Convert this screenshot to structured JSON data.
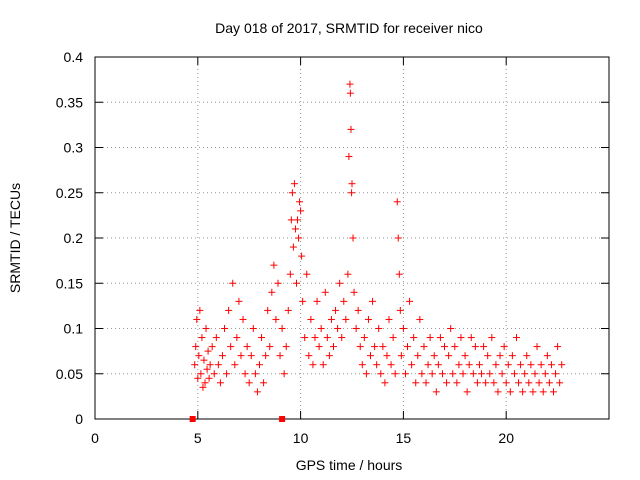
{
  "chart_data": {
    "type": "scatter",
    "title": "Day 018 of 2017, SRMTID for receiver nico",
    "xlabel": "GPS time / hours",
    "ylabel": "SRMTID / TECUs",
    "xlim": [
      0,
      25
    ],
    "ylim": [
      0,
      0.4
    ],
    "xticks": [
      0,
      5,
      10,
      15,
      20
    ],
    "xtick_labels": [
      "0",
      "5",
      "10",
      "15",
      "20"
    ],
    "yticks": [
      0,
      0.05,
      0.1,
      0.15,
      0.2,
      0.25,
      0.3,
      0.35,
      0.4
    ],
    "ytick_labels": [
      "0",
      "0.05",
      "0.1",
      "0.15",
      "0.2",
      "0.25",
      "0.3",
      "0.35",
      "0.4"
    ],
    "grid": true,
    "marker": "plus",
    "color": "#ff0000",
    "series": [
      {
        "name": "SRMTID",
        "points": [
          [
            4.75,
            0.0
          ],
          [
            9.1,
            0.0
          ],
          [
            4.85,
            0.06
          ],
          [
            4.9,
            0.08
          ],
          [
            4.95,
            0.11
          ],
          [
            5.0,
            0.045
          ],
          [
            5.05,
            0.07
          ],
          [
            5.1,
            0.12
          ],
          [
            5.15,
            0.05
          ],
          [
            5.2,
            0.09
          ],
          [
            5.25,
            0.035
          ],
          [
            5.3,
            0.065
          ],
          [
            5.35,
            0.04
          ],
          [
            5.4,
            0.1
          ],
          [
            5.45,
            0.055
          ],
          [
            5.5,
            0.075
          ],
          [
            5.55,
            0.045
          ],
          [
            5.6,
            0.06
          ],
          [
            5.7,
            0.08
          ],
          [
            5.8,
            0.05
          ],
          [
            5.9,
            0.09
          ],
          [
            6.0,
            0.06
          ],
          [
            6.1,
            0.04
          ],
          [
            6.2,
            0.07
          ],
          [
            6.3,
            0.1
          ],
          [
            6.4,
            0.05
          ],
          [
            6.5,
            0.12
          ],
          [
            6.6,
            0.08
          ],
          [
            6.7,
            0.15
          ],
          [
            6.8,
            0.06
          ],
          [
            6.9,
            0.09
          ],
          [
            7.0,
            0.13
          ],
          [
            7.1,
            0.07
          ],
          [
            7.2,
            0.11
          ],
          [
            7.3,
            0.05
          ],
          [
            7.4,
            0.08
          ],
          [
            7.5,
            0.04
          ],
          [
            7.6,
            0.07
          ],
          [
            7.7,
            0.1
          ],
          [
            7.8,
            0.05
          ],
          [
            7.9,
            0.03
          ],
          [
            8.0,
            0.06
          ],
          [
            8.1,
            0.09
          ],
          [
            8.2,
            0.04
          ],
          [
            8.3,
            0.07
          ],
          [
            8.4,
            0.12
          ],
          [
            8.5,
            0.08
          ],
          [
            8.6,
            0.14
          ],
          [
            8.7,
            0.17
          ],
          [
            8.8,
            0.11
          ],
          [
            8.9,
            0.15
          ],
          [
            9.0,
            0.07
          ],
          [
            9.1,
            0.1
          ],
          [
            9.2,
            0.05
          ],
          [
            9.3,
            0.08
          ],
          [
            9.4,
            0.12
          ],
          [
            9.5,
            0.16
          ],
          [
            9.55,
            0.22
          ],
          [
            9.6,
            0.25
          ],
          [
            9.65,
            0.19
          ],
          [
            9.7,
            0.26
          ],
          [
            9.75,
            0.21
          ],
          [
            9.8,
            0.15
          ],
          [
            9.85,
            0.22
          ],
          [
            9.9,
            0.2
          ],
          [
            9.95,
            0.24
          ],
          [
            10.0,
            0.23
          ],
          [
            10.05,
            0.18
          ],
          [
            10.1,
            0.13
          ],
          [
            10.2,
            0.09
          ],
          [
            10.3,
            0.16
          ],
          [
            10.4,
            0.07
          ],
          [
            10.5,
            0.11
          ],
          [
            10.6,
            0.06
          ],
          [
            10.7,
            0.09
          ],
          [
            10.8,
            0.13
          ],
          [
            10.9,
            0.08
          ],
          [
            11.0,
            0.1
          ],
          [
            11.1,
            0.06
          ],
          [
            11.2,
            0.14
          ],
          [
            11.3,
            0.09
          ],
          [
            11.4,
            0.07
          ],
          [
            11.5,
            0.11
          ],
          [
            11.6,
            0.08
          ],
          [
            11.7,
            0.12
          ],
          [
            11.8,
            0.1
          ],
          [
            11.9,
            0.15
          ],
          [
            12.0,
            0.09
          ],
          [
            12.1,
            0.13
          ],
          [
            12.2,
            0.11
          ],
          [
            12.3,
            0.16
          ],
          [
            12.35,
            0.29
          ],
          [
            12.4,
            0.37
          ],
          [
            12.42,
            0.36
          ],
          [
            12.45,
            0.32
          ],
          [
            12.48,
            0.25
          ],
          [
            12.5,
            0.26
          ],
          [
            12.55,
            0.2
          ],
          [
            12.6,
            0.14
          ],
          [
            12.7,
            0.1
          ],
          [
            12.8,
            0.12
          ],
          [
            12.9,
            0.08
          ],
          [
            13.0,
            0.06
          ],
          [
            13.1,
            0.09
          ],
          [
            13.2,
            0.05
          ],
          [
            13.3,
            0.11
          ],
          [
            13.4,
            0.07
          ],
          [
            13.5,
            0.13
          ],
          [
            13.6,
            0.08
          ],
          [
            13.7,
            0.06
          ],
          [
            13.8,
            0.1
          ],
          [
            13.9,
            0.05
          ],
          [
            14.0,
            0.08
          ],
          [
            14.1,
            0.04
          ],
          [
            14.2,
            0.07
          ],
          [
            14.3,
            0.11
          ],
          [
            14.4,
            0.06
          ],
          [
            14.5,
            0.09
          ],
          [
            14.6,
            0.05
          ],
          [
            14.7,
            0.24
          ],
          [
            14.75,
            0.2
          ],
          [
            14.8,
            0.16
          ],
          [
            14.85,
            0.12
          ],
          [
            14.9,
            0.07
          ],
          [
            15.0,
            0.1
          ],
          [
            15.1,
            0.05
          ],
          [
            15.2,
            0.08
          ],
          [
            15.3,
            0.13
          ],
          [
            15.4,
            0.06
          ],
          [
            15.5,
            0.09
          ],
          [
            15.6,
            0.04
          ],
          [
            15.7,
            0.07
          ],
          [
            15.8,
            0.11
          ],
          [
            15.9,
            0.05
          ],
          [
            16.0,
            0.08
          ],
          [
            16.1,
            0.04
          ],
          [
            16.2,
            0.06
          ],
          [
            16.3,
            0.09
          ],
          [
            16.4,
            0.05
          ],
          [
            16.5,
            0.07
          ],
          [
            16.6,
            0.03
          ],
          [
            16.7,
            0.06
          ],
          [
            16.8,
            0.09
          ],
          [
            16.9,
            0.05
          ],
          [
            17.0,
            0.08
          ],
          [
            17.1,
            0.04
          ],
          [
            17.2,
            0.07
          ],
          [
            17.3,
            0.1
          ],
          [
            17.4,
            0.05
          ],
          [
            17.5,
            0.08
          ],
          [
            17.6,
            0.04
          ],
          [
            17.7,
            0.06
          ],
          [
            17.8,
            0.09
          ],
          [
            17.9,
            0.05
          ],
          [
            18.0,
            0.07
          ],
          [
            18.1,
            0.03
          ],
          [
            18.2,
            0.06
          ],
          [
            18.3,
            0.09
          ],
          [
            18.4,
            0.05
          ],
          [
            18.5,
            0.08
          ],
          [
            18.6,
            0.04
          ],
          [
            18.7,
            0.06
          ],
          [
            18.8,
            0.05
          ],
          [
            18.9,
            0.08
          ],
          [
            19.0,
            0.04
          ],
          [
            19.1,
            0.07
          ],
          [
            19.2,
            0.05
          ],
          [
            19.3,
            0.09
          ],
          [
            19.4,
            0.04
          ],
          [
            19.5,
            0.06
          ],
          [
            19.6,
            0.03
          ],
          [
            19.7,
            0.07
          ],
          [
            19.8,
            0.05
          ],
          [
            19.9,
            0.08
          ],
          [
            20.0,
            0.04
          ],
          [
            20.1,
            0.06
          ],
          [
            20.2,
            0.03
          ],
          [
            20.3,
            0.07
          ],
          [
            20.4,
            0.05
          ],
          [
            20.5,
            0.09
          ],
          [
            20.6,
            0.04
          ],
          [
            20.7,
            0.06
          ],
          [
            20.8,
            0.03
          ],
          [
            20.9,
            0.05
          ],
          [
            21.0,
            0.07
          ],
          [
            21.1,
            0.04
          ],
          [
            21.2,
            0.06
          ],
          [
            21.3,
            0.03
          ],
          [
            21.4,
            0.05
          ],
          [
            21.5,
            0.08
          ],
          [
            21.6,
            0.04
          ],
          [
            21.7,
            0.06
          ],
          [
            21.8,
            0.03
          ],
          [
            21.9,
            0.05
          ],
          [
            22.0,
            0.07
          ],
          [
            22.1,
            0.04
          ],
          [
            22.2,
            0.06
          ],
          [
            22.3,
            0.03
          ],
          [
            22.4,
            0.05
          ],
          [
            22.5,
            0.08
          ],
          [
            22.6,
            0.04
          ],
          [
            22.7,
            0.06
          ]
        ]
      }
    ]
  }
}
